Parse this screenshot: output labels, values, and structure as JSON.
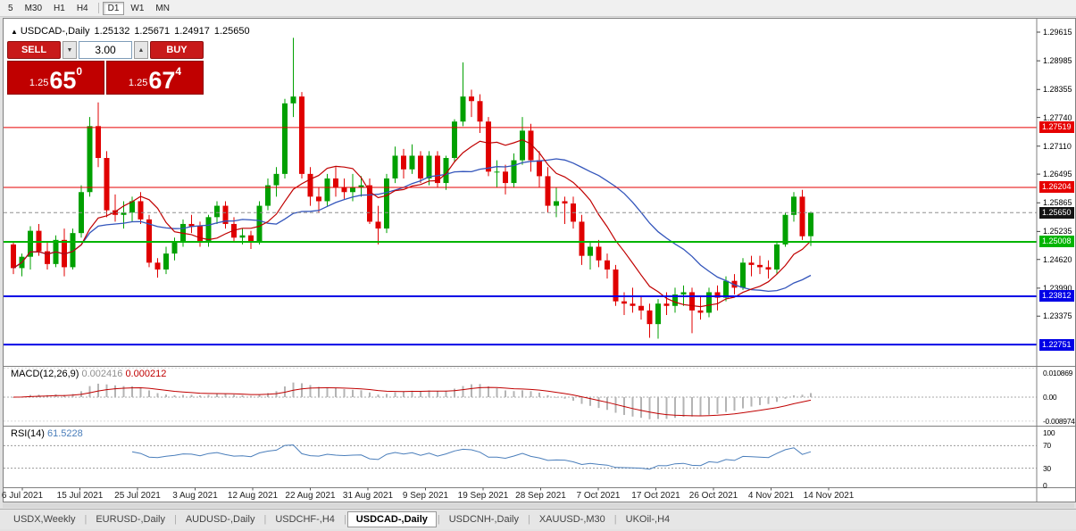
{
  "toolbar": {
    "timeframes": [
      {
        "label": "5",
        "active": false
      },
      {
        "label": "M30",
        "active": false
      },
      {
        "label": "H1",
        "active": false
      },
      {
        "label": "H4",
        "active": false
      },
      {
        "label": "D1",
        "active": true
      },
      {
        "label": "W1",
        "active": false
      },
      {
        "label": "MN",
        "active": false
      }
    ]
  },
  "chart_header": {
    "collapse_icon": "▲",
    "symbol": "USDCAD-,Daily",
    "open": "1.25132",
    "high": "1.25671",
    "low": "1.24917",
    "close": "1.25650"
  },
  "trade_panel": {
    "sell_label": "SELL",
    "buy_label": "BUY",
    "volume": "3.00",
    "spin_down": "▼",
    "spin_up": "▲",
    "bid": {
      "prefix": "1.25",
      "big": "65",
      "sup": "0"
    },
    "ask": {
      "prefix": "1.25",
      "big": "67",
      "sup": "4"
    },
    "panel_color": "#c00000"
  },
  "price_scale": {
    "ticks": [
      "1.29615",
      "1.28985",
      "1.28355",
      "1.27740",
      "1.27110",
      "1.26495",
      "1.25865",
      "1.25235",
      "1.24620",
      "1.23990",
      "1.23375"
    ]
  },
  "levels": [
    {
      "price": 1.27519,
      "label": "1.27519",
      "color": "#e60000",
      "width": 1
    },
    {
      "price": 1.26204,
      "label": "1.26204",
      "color": "#e60000",
      "width": 1
    },
    {
      "price": 1.25008,
      "label": "1.25008",
      "color": "#00b400",
      "width": 2
    },
    {
      "price": 1.23812,
      "label": "1.23812",
      "color": "#0000e6",
      "width": 2
    },
    {
      "price": 1.22751,
      "label": "1.22751",
      "color": "#0000e6",
      "width": 2
    }
  ],
  "current_price": {
    "value": 1.2565,
    "label": "1.25650",
    "label_bg": "#141414"
  },
  "macd": {
    "title": "MACD(12,26,9)",
    "value_main": "0.002416",
    "value_signal": "0.000212",
    "scale_top": "0.010869",
    "scale_zero": "0.00",
    "scale_bottom": "-0.008974",
    "hist_color": "#b4b4b4",
    "signal_color": "#c00000"
  },
  "rsi": {
    "title": "RSI(14)",
    "value": "61.5228",
    "levels": [
      "100",
      "70",
      "30",
      "0"
    ],
    "line_color": "#4a7ebb"
  },
  "x_axis": {
    "labels": [
      "6 Jul 2021",
      "15 Jul 2021",
      "25 Jul 2021",
      "3 Aug 2021",
      "12 Aug 2021",
      "22 Aug 2021",
      "31 Aug 2021",
      "9 Sep 2021",
      "19 Sep 2021",
      "28 Sep 2021",
      "7 Oct 2021",
      "17 Oct 2021",
      "26 Oct 2021",
      "4 Nov 2021",
      "14 Nov 2021"
    ]
  },
  "tabs": [
    {
      "label": "USDX,Weekly",
      "active": false
    },
    {
      "label": "EURUSD-,Daily",
      "active": false
    },
    {
      "label": "AUDUSD-,Daily",
      "active": false
    },
    {
      "label": "USDCHF-,H4",
      "active": false
    },
    {
      "label": "USDCAD-,Daily",
      "active": true
    },
    {
      "label": "USDCNH-,Daily",
      "active": false
    },
    {
      "label": "XAUUSD-,M30",
      "active": false
    },
    {
      "label": "UKOil-,H4",
      "active": false
    }
  ],
  "chart_data": {
    "type": "candlestick",
    "symbol": "USDCAD",
    "timeframe": "Daily",
    "up_color": "#00a000",
    "down_color": "#e00000",
    "ma_fast": {
      "period": 9,
      "color": "#c00000"
    },
    "ma_slow": {
      "period": 21,
      "color": "#3355bb"
    },
    "macd_params": {
      "fast": 12,
      "slow": 26,
      "signal": 9
    },
    "rsi_period": 14,
    "last_bar_ohlc": [
      1.25132,
      1.25671,
      1.24917,
      1.2565
    ],
    "candles": [
      [
        1.2495,
        1.25,
        1.243,
        1.2443
      ],
      [
        1.2443,
        1.2475,
        1.2425,
        1.2468
      ],
      [
        1.2468,
        1.2535,
        1.244,
        1.2525
      ],
      [
        1.2525,
        1.254,
        1.247,
        1.248
      ],
      [
        1.248,
        1.25,
        1.244,
        1.2452
      ],
      [
        1.2452,
        1.2515,
        1.2445,
        1.2505
      ],
      [
        1.2505,
        1.253,
        1.2425,
        1.2445
      ],
      [
        1.2445,
        1.253,
        1.244,
        1.252
      ],
      [
        1.252,
        1.2625,
        1.251,
        1.261
      ],
      [
        1.261,
        1.2775,
        1.26,
        1.2755
      ],
      [
        1.2755,
        1.2807,
        1.2665,
        1.2685
      ],
      [
        1.2685,
        1.27,
        1.2555,
        1.257
      ],
      [
        1.257,
        1.2605,
        1.2545,
        1.256
      ],
      [
        1.256,
        1.259,
        1.253,
        1.2565
      ],
      [
        1.2565,
        1.26,
        1.2545,
        1.259
      ],
      [
        1.259,
        1.261,
        1.254,
        1.255
      ],
      [
        1.255,
        1.256,
        1.2445,
        1.2455
      ],
      [
        1.2455,
        1.2465,
        1.2422,
        1.244
      ],
      [
        1.244,
        1.249,
        1.243,
        1.2475
      ],
      [
        1.2475,
        1.251,
        1.246,
        1.25
      ],
      [
        1.25,
        1.255,
        1.249,
        1.254
      ],
      [
        1.254,
        1.256,
        1.252,
        1.2535
      ],
      [
        1.2535,
        1.2545,
        1.249,
        1.25
      ],
      [
        1.25,
        1.256,
        1.249,
        1.2555
      ],
      [
        1.2555,
        1.259,
        1.254,
        1.258
      ],
      [
        1.258,
        1.259,
        1.253,
        1.254
      ],
      [
        1.254,
        1.2555,
        1.25,
        1.251
      ],
      [
        1.251,
        1.253,
        1.2495,
        1.2515
      ],
      [
        1.2515,
        1.2525,
        1.2485,
        1.25
      ],
      [
        1.25,
        1.259,
        1.2495,
        1.258
      ],
      [
        1.258,
        1.264,
        1.257,
        1.2625
      ],
      [
        1.2625,
        1.2665,
        1.26,
        1.265
      ],
      [
        1.265,
        1.2815,
        1.264,
        1.2805
      ],
      [
        1.2805,
        1.2949,
        1.2775,
        1.282
      ],
      [
        1.282,
        1.283,
        1.264,
        1.265
      ],
      [
        1.265,
        1.2665,
        1.258,
        1.26
      ],
      [
        1.26,
        1.262,
        1.2565,
        1.259
      ],
      [
        1.259,
        1.265,
        1.258,
        1.264
      ],
      [
        1.264,
        1.2665,
        1.26,
        1.262
      ],
      [
        1.262,
        1.264,
        1.2595,
        1.261
      ],
      [
        1.261,
        1.265,
        1.259,
        1.262
      ],
      [
        1.262,
        1.2645,
        1.26,
        1.2625
      ],
      [
        1.2625,
        1.264,
        1.254,
        1.2545
      ],
      [
        1.2545,
        1.258,
        1.2495,
        1.253
      ],
      [
        1.253,
        1.265,
        1.252,
        1.264
      ],
      [
        1.264,
        1.271,
        1.263,
        1.269
      ],
      [
        1.269,
        1.2705,
        1.264,
        1.266
      ],
      [
        1.266,
        1.2715,
        1.265,
        1.269
      ],
      [
        1.269,
        1.27,
        1.263,
        1.264
      ],
      [
        1.264,
        1.27,
        1.2625,
        1.269
      ],
      [
        1.269,
        1.27,
        1.262,
        1.263
      ],
      [
        1.263,
        1.269,
        1.2615,
        1.2685
      ],
      [
        1.2685,
        1.277,
        1.2675,
        1.2765
      ],
      [
        1.2765,
        1.2895,
        1.2755,
        1.282
      ],
      [
        1.282,
        1.2835,
        1.2775,
        1.281
      ],
      [
        1.281,
        1.2825,
        1.274,
        1.2765
      ],
      [
        1.2765,
        1.2775,
        1.2645,
        1.2655
      ],
      [
        1.2655,
        1.268,
        1.262,
        1.2655
      ],
      [
        1.2655,
        1.267,
        1.2605,
        1.263
      ],
      [
        1.263,
        1.2695,
        1.262,
        1.268
      ],
      [
        1.268,
        1.2775,
        1.267,
        1.2745
      ],
      [
        1.2745,
        1.276,
        1.2655,
        1.268
      ],
      [
        1.268,
        1.27,
        1.262,
        1.2645
      ],
      [
        1.2645,
        1.2665,
        1.2565,
        1.258
      ],
      [
        1.258,
        1.262,
        1.2555,
        1.259
      ],
      [
        1.259,
        1.26,
        1.254,
        1.2585
      ],
      [
        1.2585,
        1.26,
        1.253,
        1.2545
      ],
      [
        1.2545,
        1.256,
        1.245,
        1.247
      ],
      [
        1.247,
        1.25,
        1.244,
        1.249
      ],
      [
        1.249,
        1.2505,
        1.2445,
        1.246
      ],
      [
        1.246,
        1.2475,
        1.242,
        1.244
      ],
      [
        1.244,
        1.245,
        1.236,
        1.237
      ],
      [
        1.237,
        1.239,
        1.234,
        1.2365
      ],
      [
        1.2365,
        1.24,
        1.2345,
        1.236
      ],
      [
        1.236,
        1.238,
        1.233,
        1.235
      ],
      [
        1.235,
        1.2365,
        1.229,
        1.232
      ],
      [
        1.232,
        1.2375,
        1.2288,
        1.2365
      ],
      [
        1.2365,
        1.239,
        1.234,
        1.236
      ],
      [
        1.236,
        1.24,
        1.2345,
        1.2385
      ],
      [
        1.2385,
        1.2405,
        1.236,
        1.239
      ],
      [
        1.239,
        1.24,
        1.23,
        1.235
      ],
      [
        1.235,
        1.238,
        1.233,
        1.2345
      ],
      [
        1.2345,
        1.24,
        1.2335,
        1.239
      ],
      [
        1.239,
        1.2405,
        1.235,
        1.2378
      ],
      [
        1.2378,
        1.2425,
        1.237,
        1.2415
      ],
      [
        1.2415,
        1.243,
        1.2385,
        1.24
      ],
      [
        1.24,
        1.2465,
        1.2395,
        1.2455
      ],
      [
        1.2455,
        1.247,
        1.2425,
        1.245
      ],
      [
        1.245,
        1.247,
        1.243,
        1.2445
      ],
      [
        1.2445,
        1.246,
        1.242,
        1.244
      ],
      [
        1.244,
        1.25,
        1.243,
        1.2495
      ],
      [
        1.2495,
        1.2565,
        1.249,
        1.256
      ],
      [
        1.256,
        1.261,
        1.2545,
        1.26
      ],
      [
        1.26,
        1.2615,
        1.2505,
        1.2513
      ],
      [
        1.25132,
        1.25671,
        1.24917,
        1.2565
      ]
    ]
  }
}
